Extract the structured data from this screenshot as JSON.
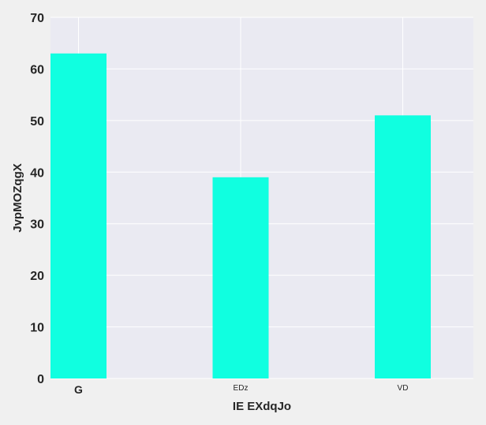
{
  "chart_data": {
    "type": "bar",
    "categories": [
      "G",
      "EDz",
      "VD"
    ],
    "values": [
      63,
      39,
      51
    ],
    "xlabel": "IE EXdqJo",
    "ylabel": "JvpMOZqgX",
    "ylim": [
      0,
      70
    ],
    "yticks": [
      "0",
      "10",
      "20",
      "30",
      "40",
      "50",
      "60",
      "70"
    ],
    "grid": true,
    "colors": {
      "bar": "#10ffe0",
      "plot_background": "#eaeaf2",
      "page_background": "#f0f0f0",
      "grid": "#ffffff",
      "text": "#262626"
    }
  }
}
